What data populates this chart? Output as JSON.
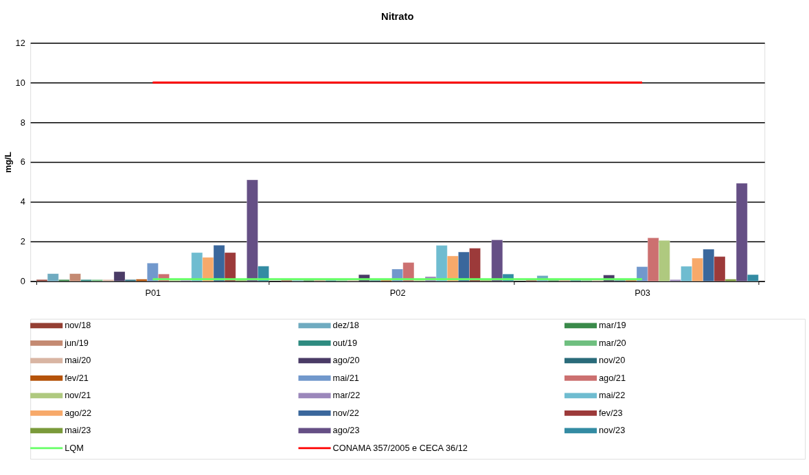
{
  "chart_data": {
    "type": "bar",
    "title": "Nitrato",
    "ylabel": "mg/L",
    "categories": [
      "P01",
      "P02",
      "P03"
    ],
    "ylim": [
      0,
      12
    ],
    "yticks": [
      0,
      2,
      4,
      6,
      8,
      10,
      12
    ],
    "grid": "y",
    "legend": "bottom",
    "series": [
      {
        "name": "nov/18",
        "color": "#943f33",
        "values": [
          0.08,
          0.05,
          0.05
        ]
      },
      {
        "name": "dez/18",
        "color": "#6fabc0",
        "values": [
          0.38,
          0.05,
          0.28
        ]
      },
      {
        "name": "mar/19",
        "color": "#3a8a4a",
        "values": [
          0.08,
          0.05,
          0.05
        ]
      },
      {
        "name": "jun/19",
        "color": "#c48a72",
        "values": [
          0.38,
          0.05,
          0.05
        ]
      },
      {
        "name": "out/19",
        "color": "#2e8b80",
        "values": [
          0.08,
          0.05,
          0.05
        ]
      },
      {
        "name": "mar/20",
        "color": "#6fbf7f",
        "values": [
          0.08,
          0.05,
          0.05
        ]
      },
      {
        "name": "mai/20",
        "color": "#d9b5a3",
        "values": [
          0.08,
          0.05,
          0.05
        ]
      },
      {
        "name": "ago/20",
        "color": "#4a3b66",
        "values": [
          0.48,
          0.33,
          0.31
        ]
      },
      {
        "name": "nov/20",
        "color": "#2a6b7a",
        "values": [
          0.08,
          0.05,
          0.05
        ]
      },
      {
        "name": "fev/21",
        "color": "#b5530a",
        "values": [
          0.1,
          0.05,
          0.05
        ]
      },
      {
        "name": "mai/21",
        "color": "#7198cc",
        "values": [
          0.91,
          0.61,
          0.73
        ]
      },
      {
        "name": "ago/21",
        "color": "#cc7070",
        "values": [
          0.36,
          0.94,
          2.18
        ]
      },
      {
        "name": "nov/21",
        "color": "#afc97f",
        "values": [
          0.05,
          0.05,
          2.05
        ]
      },
      {
        "name": "mar/22",
        "color": "#9b87bb",
        "values": [
          0.05,
          0.23,
          0.08
        ]
      },
      {
        "name": "mai/22",
        "color": "#6fbcd0",
        "values": [
          1.44,
          1.8,
          0.75
        ]
      },
      {
        "name": "ago/22",
        "color": "#f7a96a",
        "values": [
          1.2,
          1.27,
          1.16
        ]
      },
      {
        "name": "nov/22",
        "color": "#3a679c",
        "values": [
          1.81,
          1.47,
          1.61
        ]
      },
      {
        "name": "fev/23",
        "color": "#9c3a3a",
        "values": [
          1.44,
          1.66,
          1.24
        ]
      },
      {
        "name": "mai/23",
        "color": "#7a9a3a",
        "values": [
          0.05,
          0.05,
          0.1
        ]
      },
      {
        "name": "ago/23",
        "color": "#654f85",
        "values": [
          5.1,
          2.08,
          4.93
        ]
      },
      {
        "name": "nov/23",
        "color": "#338ba3",
        "values": [
          0.76,
          0.36,
          0.33
        ]
      },
      {
        "name": "LQM",
        "type": "line",
        "color": "#66ff66",
        "values": [
          0.1,
          0.1,
          0.1
        ]
      },
      {
        "name": "CONAMA 357/2005 e CECA 36/12",
        "type": "line",
        "color": "#ff0000",
        "values": [
          10,
          10,
          10
        ]
      }
    ]
  }
}
